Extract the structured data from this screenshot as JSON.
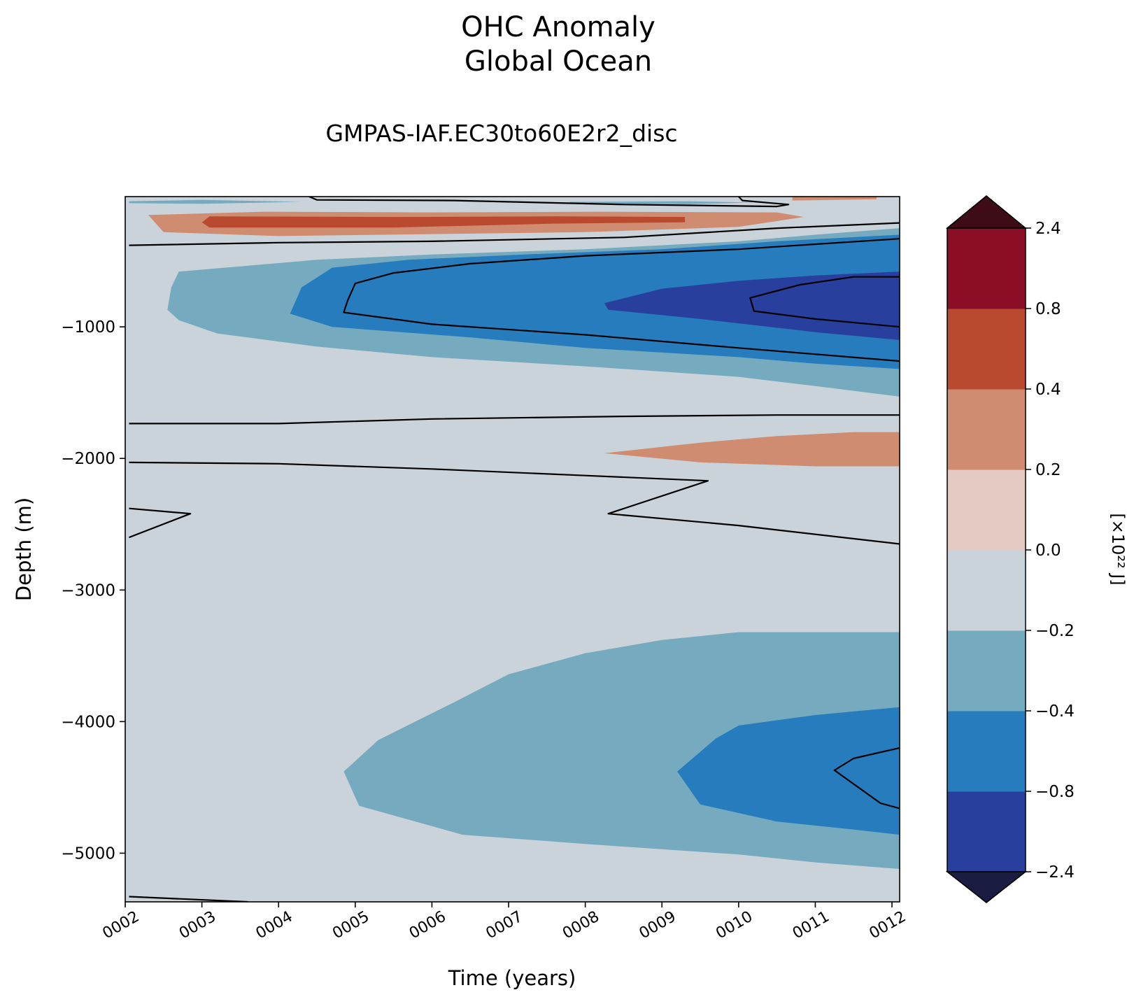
{
  "chart_data": {
    "type": "heatmap",
    "subtype": "filled-contour",
    "title": "OHC Anomaly",
    "subtitle": "Global Ocean",
    "run_name": "GMPAS-IAF.EC30to60E2r2_disc",
    "xlabel": "Time (years)",
    "ylabel": "Depth (m)",
    "x_ticks": [
      "0002",
      "0003",
      "0004",
      "0005",
      "0006",
      "0007",
      "0008",
      "0009",
      "0010",
      "0011",
      "0012"
    ],
    "xlim": [
      2,
      12.1
    ],
    "y_ticks": [
      -1000,
      -2000,
      -3000,
      -4000,
      -5000
    ],
    "y_tick_labels": [
      "−1000",
      "−2000",
      "−3000",
      "−4000",
      "−5000"
    ],
    "ylim": [
      -5370,
      -10
    ],
    "colorbar": {
      "label": "[×10²² J]",
      "levels": [
        -2.4,
        -0.8,
        -0.4,
        -0.2,
        0.0,
        0.2,
        0.4,
        0.8,
        2.4
      ],
      "tick_labels": [
        "−2.4",
        "−0.8",
        "−0.4",
        "−0.2",
        "0.0",
        "0.2",
        "0.4",
        "0.8",
        "2.4"
      ],
      "colors": [
        "#283f9d",
        "#267cbd",
        "#76aabf",
        "#cad3d9",
        "#e4cac3",
        "#d08c70",
        "#b94a30",
        "#8b0e27"
      ],
      "under_color": "#1a1c42",
      "over_color": "#3d0c17",
      "extend": "both"
    },
    "regions": [
      {
        "level": -0.2,
        "color": "#76aabf",
        "points": [
          [
            2.05,
            -45
          ],
          [
            3.0,
            -35
          ],
          [
            4.3,
            -50
          ],
          [
            3.0,
            -65
          ],
          [
            2.05,
            -60
          ]
        ]
      },
      {
        "level": -0.2,
        "color": "#76aabf",
        "points": [
          [
            7.8,
            -50
          ],
          [
            9.3,
            -45
          ],
          [
            10.2,
            -55
          ],
          [
            9.3,
            -68
          ],
          [
            7.8,
            -60
          ]
        ]
      },
      {
        "level": 0.2,
        "color": "#d08c70",
        "points": [
          [
            2.3,
            -150
          ],
          [
            3.8,
            -125
          ],
          [
            6.0,
            -130
          ],
          [
            8.2,
            -125
          ],
          [
            10.5,
            -130
          ],
          [
            10.85,
            -165
          ],
          [
            10.0,
            -240
          ],
          [
            8.0,
            -280
          ],
          [
            6.0,
            -295
          ],
          [
            4.0,
            -310
          ],
          [
            2.5,
            -280
          ]
        ]
      },
      {
        "level": 0.4,
        "color": "#b94a30",
        "points": [
          [
            3.1,
            -160
          ],
          [
            5.5,
            -165
          ],
          [
            7.6,
            -160
          ],
          [
            9.3,
            -165
          ],
          [
            9.3,
            -205
          ],
          [
            7.6,
            -215
          ],
          [
            5.5,
            -245
          ],
          [
            3.1,
            -245
          ],
          [
            3.0,
            -205
          ]
        ]
      },
      {
        "level": 0.2,
        "color": "#d08c70",
        "points": [
          [
            10.7,
            -10
          ],
          [
            11.8,
            -10
          ],
          [
            11.8,
            -30
          ],
          [
            10.7,
            -40
          ]
        ]
      },
      {
        "level": -0.2,
        "color": "#76aabf",
        "points": [
          [
            12.1,
            -250
          ],
          [
            11.0,
            -300
          ],
          [
            10.0,
            -350
          ],
          [
            8.0,
            -410
          ],
          [
            6.0,
            -450
          ],
          [
            4.5,
            -490
          ],
          [
            3.5,
            -540
          ],
          [
            2.7,
            -580
          ],
          [
            2.6,
            -700
          ],
          [
            2.55,
            -870
          ],
          [
            2.7,
            -950
          ],
          [
            3.2,
            -1050
          ],
          [
            4.5,
            -1150
          ],
          [
            6.0,
            -1230
          ],
          [
            8.0,
            -1300
          ],
          [
            10.0,
            -1380
          ],
          [
            11.0,
            -1450
          ],
          [
            12.1,
            -1530
          ]
        ]
      },
      {
        "level": -0.4,
        "color": "#267cbd",
        "points": [
          [
            12.1,
            -300
          ],
          [
            10.5,
            -350
          ],
          [
            9.0,
            -410
          ],
          [
            7.2,
            -450
          ],
          [
            5.7,
            -490
          ],
          [
            4.7,
            -550
          ],
          [
            4.3,
            -700
          ],
          [
            4.15,
            -900
          ],
          [
            4.7,
            -1000
          ],
          [
            6.5,
            -1080
          ],
          [
            8.0,
            -1160
          ],
          [
            10.0,
            -1230
          ],
          [
            11.0,
            -1280
          ],
          [
            12.1,
            -1320
          ]
        ]
      },
      {
        "level": -0.8,
        "color": "#283f9d",
        "points": [
          [
            12.1,
            -580
          ],
          [
            11.0,
            -610
          ],
          [
            10.0,
            -650
          ],
          [
            9.0,
            -710
          ],
          [
            8.25,
            -820
          ],
          [
            8.3,
            -870
          ],
          [
            9.5,
            -940
          ],
          [
            11.0,
            -1040
          ],
          [
            12.1,
            -1100
          ]
        ]
      },
      {
        "level": 0.2,
        "color": "#d08c70",
        "points": [
          [
            8.25,
            -1960
          ],
          [
            9.5,
            -1880
          ],
          [
            10.5,
            -1830
          ],
          [
            11.5,
            -1800
          ],
          [
            12.1,
            -1800
          ],
          [
            12.1,
            -2060
          ],
          [
            11.0,
            -2060
          ],
          [
            9.5,
            -2030
          ]
        ]
      },
      {
        "level": -0.2,
        "color": "#76aabf",
        "points": [
          [
            12.1,
            -3320
          ],
          [
            11.0,
            -3320
          ],
          [
            10.0,
            -3320
          ],
          [
            9.0,
            -3380
          ],
          [
            8.0,
            -3480
          ],
          [
            7.0,
            -3640
          ],
          [
            6.3,
            -3850
          ],
          [
            5.3,
            -4140
          ],
          [
            4.85,
            -4380
          ],
          [
            5.05,
            -4640
          ],
          [
            6.4,
            -4860
          ],
          [
            8.0,
            -4930
          ],
          [
            10.0,
            -5010
          ],
          [
            11.0,
            -5070
          ],
          [
            12.1,
            -5120
          ]
        ]
      },
      {
        "level": -0.4,
        "color": "#267cbd",
        "points": [
          [
            12.1,
            -3890
          ],
          [
            11.0,
            -3950
          ],
          [
            10.0,
            -4030
          ],
          [
            9.7,
            -4130
          ],
          [
            9.2,
            -4380
          ],
          [
            9.5,
            -4630
          ],
          [
            10.5,
            -4760
          ],
          [
            11.5,
            -4820
          ],
          [
            12.1,
            -4860
          ]
        ]
      }
    ],
    "contour_lines": [
      [
        [
          4.4,
          -10
        ],
        [
          4.5,
          -35
        ],
        [
          6.3,
          -40
        ],
        [
          8.5,
          -70
        ],
        [
          10.5,
          -85
        ],
        [
          10.65,
          -70
        ],
        [
          10.05,
          -40
        ],
        [
          10.0,
          -10
        ]
      ],
      [
        [
          2.05,
          -380
        ],
        [
          4.0,
          -360
        ],
        [
          6.0,
          -350
        ],
        [
          8.5,
          -320
        ],
        [
          10.5,
          -250
        ],
        [
          12.1,
          -210
        ]
      ],
      [
        [
          12.1,
          -330
        ],
        [
          10.0,
          -410
        ],
        [
          8.0,
          -460
        ],
        [
          6.5,
          -520
        ],
        [
          5.5,
          -590
        ],
        [
          5.0,
          -670
        ],
        [
          4.9,
          -800
        ],
        [
          4.85,
          -890
        ],
        [
          6.0,
          -980
        ],
        [
          8.0,
          -1060
        ],
        [
          10.0,
          -1160
        ],
        [
          12.1,
          -1260
        ]
      ],
      [
        [
          12.1,
          -620
        ],
        [
          11.5,
          -620
        ],
        [
          10.8,
          -680
        ],
        [
          10.15,
          -780
        ],
        [
          10.2,
          -880
        ],
        [
          11.0,
          -940
        ],
        [
          12.1,
          -1000
        ]
      ],
      [
        [
          2.05,
          -1735
        ],
        [
          4.0,
          -1735
        ],
        [
          6.0,
          -1700
        ],
        [
          8.5,
          -1680
        ],
        [
          10.5,
          -1670
        ],
        [
          12.1,
          -1670
        ]
      ],
      [
        [
          2.05,
          -2030
        ],
        [
          4.0,
          -2040
        ],
        [
          6.0,
          -2080
        ],
        [
          8.0,
          -2130
        ],
        [
          9.6,
          -2170
        ],
        [
          8.3,
          -2420
        ],
        [
          10.0,
          -2510
        ],
        [
          12.1,
          -2650
        ]
      ],
      [
        [
          2.05,
          -2380
        ],
        [
          2.85,
          -2420
        ],
        [
          2.05,
          -2600
        ]
      ],
      [
        [
          12.1,
          -4200
        ],
        [
          11.5,
          -4280
        ],
        [
          11.25,
          -4370
        ],
        [
          11.85,
          -4620
        ],
        [
          12.1,
          -4660
        ]
      ],
      [
        [
          2.05,
          -5330
        ],
        [
          3.6,
          -5370
        ]
      ]
    ]
  }
}
